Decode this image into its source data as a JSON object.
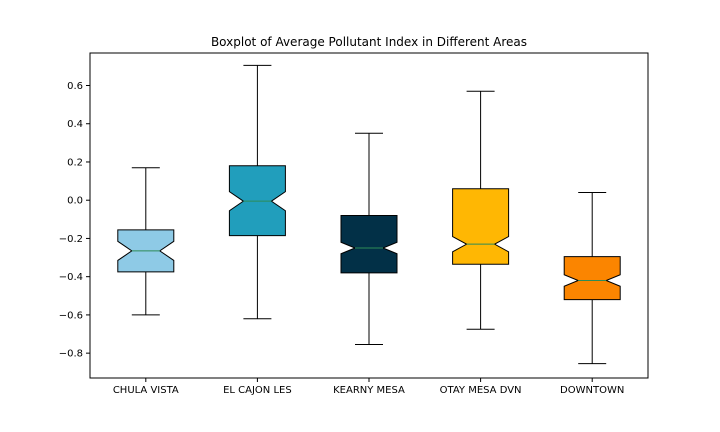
{
  "chart_data": {
    "type": "boxplot",
    "title": "Boxplot of Average Pollutant Index in Different Areas",
    "xlabel": "",
    "ylabel": "",
    "ylim": [
      -0.93,
      0.77
    ],
    "yticks": [
      -0.8,
      -0.6,
      -0.4,
      -0.2,
      0.0,
      0.2,
      0.4,
      0.6
    ],
    "ytick_labels": [
      "−0.8",
      "−0.6",
      "−0.4",
      "−0.2",
      "0.0",
      "0.2",
      "0.4",
      "0.6"
    ],
    "notched": true,
    "grid": false,
    "median_color": "#2e8b57",
    "categories": [
      "CHULA VISTA",
      "EL CAJON LES",
      "KEARNY MESA",
      "OTAY MESA DVN",
      "DOWNTOWN"
    ],
    "boxes": [
      {
        "label": "CHULA VISTA",
        "whisker_low": -0.6,
        "q1": -0.375,
        "median": -0.265,
        "q3": -0.155,
        "whisker_high": 0.17,
        "notch_low": -0.315,
        "notch_high": -0.215,
        "color": "#8ecae6"
      },
      {
        "label": "EL CAJON LES",
        "whisker_low": -0.62,
        "q1": -0.185,
        "median": -0.005,
        "q3": 0.18,
        "whisker_high": 0.705,
        "notch_low": -0.055,
        "notch_high": 0.045,
        "color": "#219ebc"
      },
      {
        "label": "KEARNY MESA",
        "whisker_low": -0.755,
        "q1": -0.38,
        "median": -0.25,
        "q3": -0.08,
        "whisker_high": 0.35,
        "notch_low": -0.28,
        "notch_high": -0.22,
        "color": "#023047"
      },
      {
        "label": "OTAY MESA DVN",
        "whisker_low": -0.675,
        "q1": -0.335,
        "median": -0.23,
        "q3": 0.06,
        "whisker_high": 0.57,
        "notch_low": -0.27,
        "notch_high": -0.19,
        "color": "#ffb703"
      },
      {
        "label": "DOWNTOWN",
        "whisker_low": -0.855,
        "q1": -0.52,
        "median": -0.42,
        "q3": -0.295,
        "whisker_high": 0.04,
        "notch_low": -0.45,
        "notch_high": -0.39,
        "color": "#fb8500"
      }
    ]
  }
}
